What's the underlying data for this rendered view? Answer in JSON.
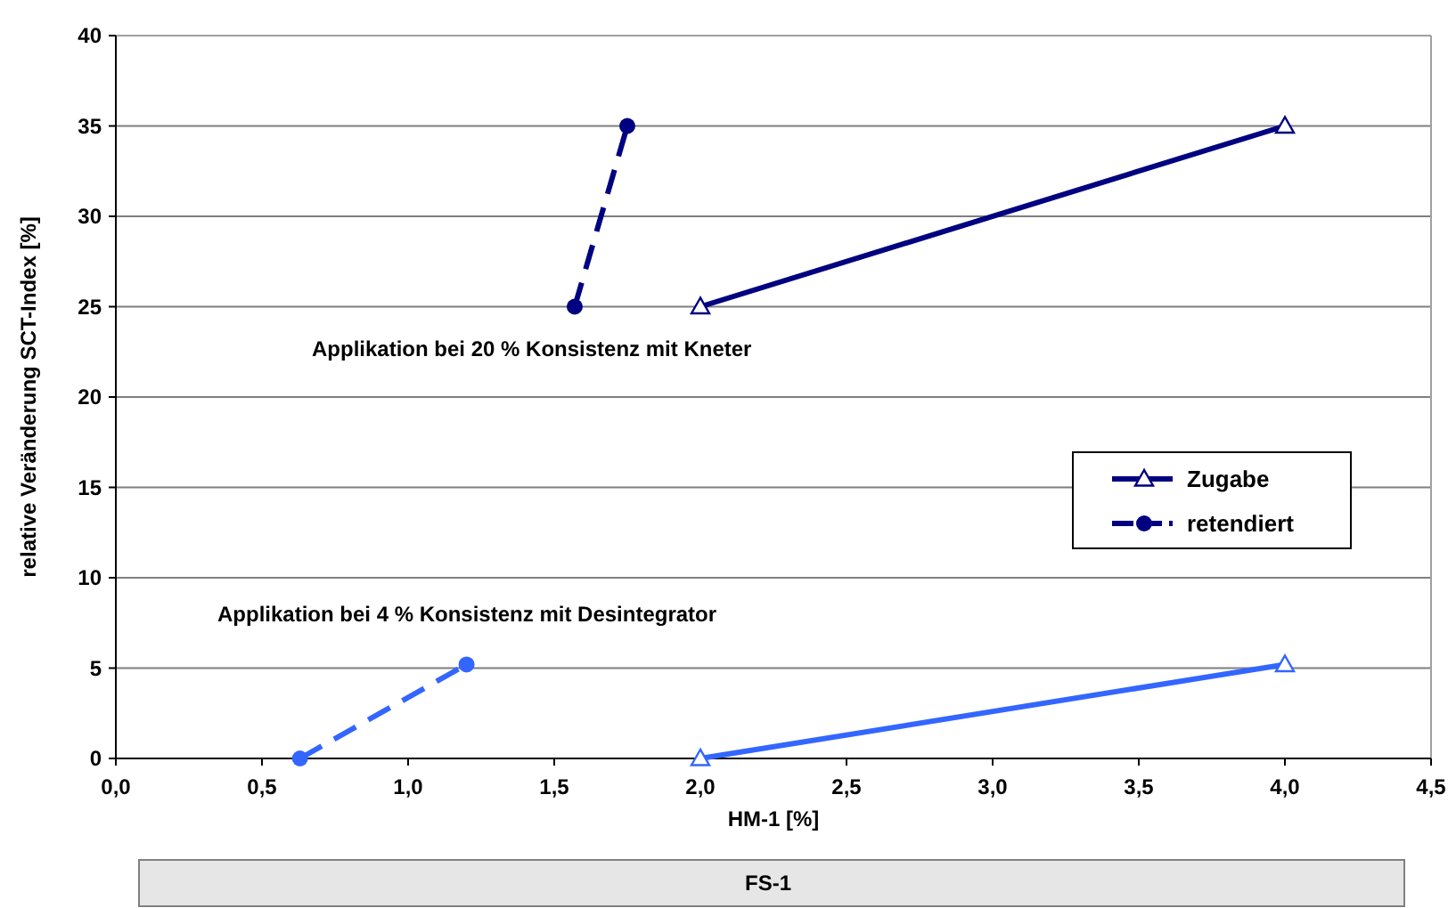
{
  "chart_data": {
    "type": "line",
    "xlabel": "HM-1 [%]",
    "ylabel": "relative Veränderung SCT-Index [%]",
    "series": [
      {
        "name": "Zugabe",
        "color": "#000080",
        "x": [
          2,
          4
        ],
        "values": [
          25,
          35
        ],
        "marker": "triangle",
        "line_style": "solid"
      },
      {
        "name": "retendiert",
        "color": "#000080",
        "x": [
          1.57,
          1.75
        ],
        "values": [
          25,
          35
        ],
        "marker": "circle",
        "line_style": "dashed"
      },
      {
        "color": "#3366ff",
        "x": [
          2,
          4
        ],
        "values": [
          0,
          5.2
        ],
        "marker": "triangle",
        "line_style": "solid"
      },
      {
        "color": "#3366ff",
        "x": [
          0.63,
          1.2
        ],
        "values": [
          0,
          5.2
        ],
        "marker": "circle",
        "line_style": "dashed"
      }
    ],
    "xlim": [
      0,
      4.5
    ],
    "xticks": [
      {
        "value": 0,
        "label": "0,0"
      },
      {
        "value": 0.5,
        "label": "0,5"
      },
      {
        "value": 1,
        "label": "1,0"
      },
      {
        "value": 1.5,
        "label": "1,5"
      },
      {
        "value": 2,
        "label": "2,0"
      },
      {
        "value": 2.5,
        "label": "2,5"
      },
      {
        "value": 3,
        "label": "3,0"
      },
      {
        "value": 3.5,
        "label": "3,5"
      },
      {
        "value": 4,
        "label": "4,0"
      },
      {
        "value": 4.5,
        "label": "4,5"
      }
    ],
    "ylim": [
      0,
      40
    ],
    "yticks": [
      0,
      5,
      10,
      15,
      20,
      25,
      30,
      35,
      40
    ],
    "grid": "y",
    "legend": "right",
    "annotations": [
      "Applikation bei 20 % Konsistenz mit Kneter",
      "Applikation bei 4 % Konsistenz mit Desintegrator",
      "FS-1"
    ]
  }
}
